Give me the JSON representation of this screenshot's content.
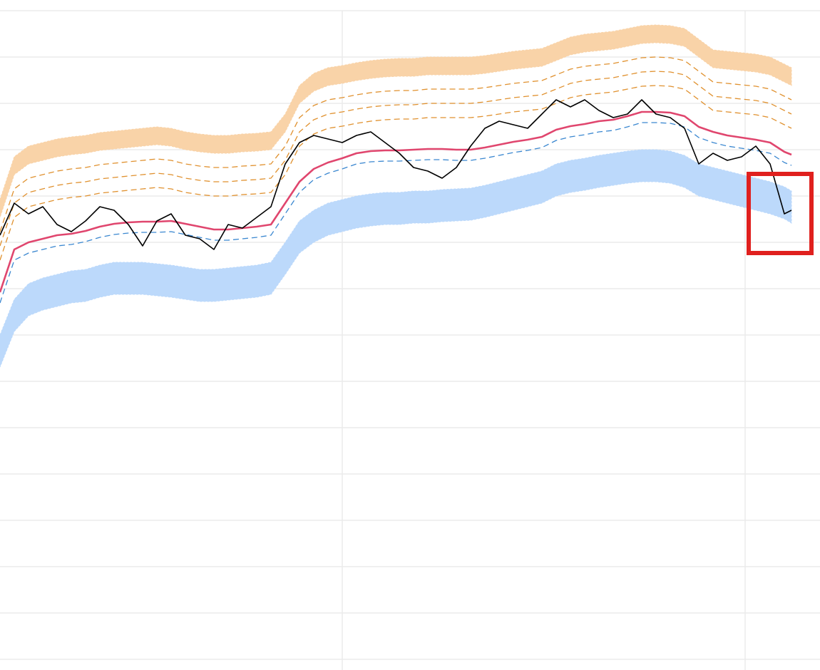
{
  "chart_data": {
    "type": "line",
    "xlim": [
      0,
      1150
    ],
    "ylim": [
      0,
      940
    ],
    "xticks": [
      480,
      1045
    ],
    "yticks": [
      15,
      80,
      145,
      210,
      275,
      340,
      405,
      470,
      535,
      600,
      665,
      730,
      795,
      860,
      925
    ],
    "grid": true,
    "x": [
      0,
      20,
      40,
      60,
      80,
      100,
      120,
      140,
      160,
      180,
      200,
      220,
      240,
      260,
      280,
      300,
      320,
      340,
      360,
      380,
      400,
      420,
      440,
      460,
      480,
      500,
      520,
      540,
      560,
      580,
      600,
      620,
      640,
      660,
      680,
      700,
      720,
      740,
      760,
      780,
      800,
      820,
      840,
      860,
      880,
      900,
      920,
      940,
      960,
      980,
      1000,
      1020,
      1040,
      1060,
      1080,
      1100,
      1110
    ],
    "bands": [
      {
        "color": "#f9d3a8",
        "upper": [
          660,
          720,
          735,
          740,
          745,
          748,
          750,
          754,
          756,
          758,
          760,
          762,
          760,
          755,
          752,
          750,
          750,
          752,
          753,
          755,
          780,
          820,
          837,
          845,
          848,
          852,
          855,
          857,
          858,
          858,
          860,
          860,
          860,
          860,
          862,
          865,
          868,
          870,
          872,
          880,
          888,
          892,
          894,
          896,
          900,
          904,
          905,
          904,
          900,
          885,
          870,
          868,
          866,
          864,
          860,
          850,
          845
        ],
        "lower": [
          635,
          695,
          710,
          715,
          720,
          723,
          725,
          729,
          731,
          733,
          735,
          737,
          735,
          730,
          727,
          725,
          725,
          727,
          728,
          730,
          755,
          795,
          812,
          820,
          823,
          827,
          830,
          832,
          833,
          833,
          835,
          835,
          835,
          835,
          837,
          840,
          843,
          845,
          847,
          855,
          863,
          867,
          869,
          871,
          875,
          879,
          880,
          879,
          875,
          860,
          845,
          843,
          841,
          839,
          835,
          825,
          820
        ]
      },
      {
        "color": "#bcd9fb",
        "upper": [
          470,
          520,
          542,
          550,
          555,
          560,
          562,
          568,
          572,
          572,
          572,
          570,
          568,
          565,
          562,
          562,
          564,
          566,
          568,
          572,
          600,
          630,
          645,
          655,
          660,
          665,
          668,
          670,
          670,
          672,
          672,
          674,
          675,
          676,
          680,
          685,
          690,
          695,
          700,
          710,
          715,
          718,
          722,
          725,
          728,
          730,
          730,
          728,
          722,
          710,
          705,
          700,
          695,
          690,
          685,
          678,
          672
        ],
        "lower": [
          425,
          475,
          497,
          505,
          510,
          515,
          517,
          523,
          527,
          527,
          527,
          525,
          523,
          520,
          517,
          517,
          519,
          521,
          523,
          527,
          555,
          585,
          600,
          610,
          615,
          620,
          623,
          625,
          625,
          627,
          627,
          629,
          630,
          631,
          635,
          640,
          645,
          650,
          655,
          665,
          670,
          673,
          677,
          680,
          683,
          685,
          685,
          683,
          677,
          665,
          660,
          655,
          650,
          645,
          640,
          633,
          627
        ]
      }
    ],
    "series": [
      {
        "color": "#e0912f",
        "dashed": true,
        "values": [
          615,
          675,
          690,
          695,
          700,
          703,
          705,
          709,
          711,
          713,
          715,
          717,
          715,
          710,
          707,
          705,
          705,
          707,
          708,
          710,
          735,
          775,
          792,
          800,
          803,
          807,
          810,
          812,
          813,
          813,
          815,
          815,
          815,
          815,
          817,
          820,
          823,
          825,
          827,
          835,
          843,
          847,
          849,
          851,
          855,
          859,
          860,
          859,
          855,
          840,
          825,
          823,
          821,
          819,
          815,
          805,
          800
        ]
      },
      {
        "color": "#e0912f",
        "dashed": true,
        "values": [
          595,
          655,
          670,
          675,
          680,
          683,
          685,
          689,
          691,
          693,
          695,
          697,
          695,
          690,
          687,
          685,
          685,
          687,
          688,
          690,
          715,
          755,
          772,
          780,
          783,
          787,
          790,
          792,
          793,
          793,
          795,
          795,
          795,
          795,
          797,
          800,
          803,
          805,
          807,
          815,
          823,
          827,
          829,
          831,
          835,
          839,
          840,
          839,
          835,
          820,
          805,
          803,
          801,
          799,
          795,
          785,
          780
        ]
      },
      {
        "color": "#e0912f",
        "dashed": true,
        "values": [
          575,
          635,
          650,
          655,
          660,
          663,
          665,
          669,
          671,
          673,
          675,
          677,
          675,
          670,
          667,
          665,
          665,
          667,
          668,
          670,
          695,
          735,
          752,
          760,
          763,
          767,
          770,
          772,
          773,
          773,
          775,
          775,
          775,
          775,
          777,
          780,
          783,
          785,
          787,
          795,
          803,
          807,
          809,
          811,
          815,
          819,
          820,
          819,
          815,
          800,
          785,
          783,
          781,
          779,
          775,
          765,
          760
        ]
      },
      {
        "color": "#3a87d0",
        "dashed": true,
        "values": [
          515,
          575,
          585,
          590,
          595,
          597,
          601,
          607,
          611,
          613,
          614,
          614,
          615,
          611,
          607,
          603,
          603,
          605,
          607,
          610,
          640,
          670,
          688,
          697,
          703,
          710,
          713,
          714,
          714,
          715,
          716,
          716,
          715,
          715,
          718,
          722,
          726,
          729,
          733,
          743,
          748,
          751,
          755,
          757,
          762,
          768,
          768,
          767,
          762,
          747,
          740,
          735,
          732,
          729,
          725,
          712,
          708
        ]
      },
      {
        "color": "#e0466e",
        "dashed": false,
        "values": [
          530,
          590,
          600,
          605,
          610,
          612,
          616,
          622,
          626,
          628,
          629,
          629,
          630,
          626,
          622,
          618,
          618,
          620,
          622,
          625,
          655,
          685,
          703,
          712,
          718,
          725,
          728,
          729,
          729,
          730,
          731,
          731,
          730,
          730,
          733,
          737,
          741,
          744,
          748,
          758,
          763,
          766,
          770,
          772,
          777,
          783,
          783,
          782,
          777,
          762,
          755,
          750,
          747,
          744,
          740,
          727,
          723
        ]
      },
      {
        "color": "#000000",
        "dashed": false,
        "values": [
          610,
          655,
          640,
          650,
          625,
          615,
          630,
          650,
          645,
          625,
          595,
          630,
          640,
          610,
          605,
          590,
          625,
          620,
          635,
          650,
          710,
          740,
          750,
          745,
          740,
          750,
          755,
          740,
          725,
          705,
          700,
          690,
          705,
          735,
          760,
          770,
          765,
          760,
          780,
          800,
          790,
          800,
          785,
          775,
          780,
          800,
          780,
          775,
          760,
          710,
          725,
          715,
          720,
          735,
          710,
          640,
          645
        ]
      }
    ]
  }
}
